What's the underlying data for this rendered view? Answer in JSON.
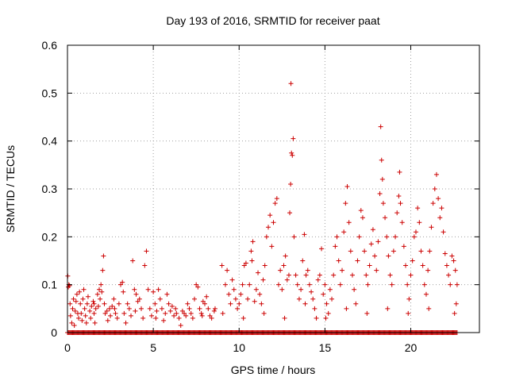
{
  "chart_data": {
    "type": "scatter",
    "title": "Day 193 of 2016, SRMTID for receiver paat",
    "xlabel": "GPS time / hours",
    "ylabel": "SRMTID / TECUs",
    "xlim": [
      0,
      24
    ],
    "ylim": [
      0,
      0.6
    ],
    "xticks": [
      0,
      5,
      10,
      15,
      20
    ],
    "xtick_labels": [
      "0",
      "5",
      "10",
      "15",
      "20"
    ],
    "yticks": [
      0,
      0.1,
      0.2,
      0.3,
      0.4,
      0.5,
      0.6
    ],
    "ytick_labels": [
      "0",
      "0.1",
      "0.2",
      "0.3",
      "0.4",
      "0.5",
      "0.6"
    ],
    "grid": true,
    "marker": "+",
    "color": "#cc0000",
    "baseline_series": {
      "x_start": 0.0,
      "x_end": 22.7,
      "step": 0.05,
      "y": 0
    },
    "points": [
      [
        0.02,
        0.118
      ],
      [
        0.05,
        0.095
      ],
      [
        0.08,
        0.1
      ],
      [
        0.12,
        0.098
      ],
      [
        0.15,
        0.06
      ],
      [
        0.18,
        0.035
      ],
      [
        0.25,
        0.02
      ],
      [
        0.3,
        0.05
      ],
      [
        0.35,
        0.07
      ],
      [
        0.4,
        0.015
      ],
      [
        0.45,
        0.045
      ],
      [
        0.5,
        0.065
      ],
      [
        0.55,
        0.08
      ],
      [
        0.6,
        0.04
      ],
      [
        0.65,
        0.03
      ],
      [
        0.7,
        0.085
      ],
      [
        0.75,
        0.06
      ],
      [
        0.8,
        0.04
      ],
      [
        0.85,
        0.025
      ],
      [
        0.9,
        0.07
      ],
      [
        0.95,
        0.09
      ],
      [
        1.0,
        0.05
      ],
      [
        1.05,
        0.035
      ],
      [
        1.1,
        0.02
      ],
      [
        1.15,
        0.06
      ],
      [
        1.2,
        0.075
      ],
      [
        1.3,
        0.045
      ],
      [
        1.35,
        0.03
      ],
      [
        1.4,
        0.055
      ],
      [
        1.5,
        0.065
      ],
      [
        1.55,
        0.04
      ],
      [
        1.6,
        0.02
      ],
      [
        1.65,
        0.05
      ],
      [
        1.75,
        0.08
      ],
      [
        1.8,
        0.055
      ],
      [
        1.85,
        0.09
      ],
      [
        1.9,
        0.07
      ],
      [
        1.95,
        0.1
      ],
      [
        2.0,
        0.085
      ],
      [
        2.05,
        0.13
      ],
      [
        2.1,
        0.16
      ],
      [
        2.15,
        0.06
      ],
      [
        2.2,
        0.04
      ],
      [
        2.3,
        0.045
      ],
      [
        2.35,
        0.025
      ],
      [
        2.45,
        0.05
      ],
      [
        2.5,
        0.035
      ],
      [
        2.6,
        0.055
      ],
      [
        2.7,
        0.07
      ],
      [
        2.8,
        0.04
      ],
      [
        2.9,
        0.03
      ],
      [
        3.0,
        0.06
      ],
      [
        3.1,
        0.1
      ],
      [
        3.2,
        0.105
      ],
      [
        3.25,
        0.085
      ],
      [
        3.3,
        0.04
      ],
      [
        3.4,
        0.02
      ],
      [
        3.5,
        0.06
      ],
      [
        3.6,
        0.05
      ],
      [
        3.7,
        0.035
      ],
      [
        3.8,
        0.15
      ],
      [
        3.9,
        0.09
      ],
      [
        4.0,
        0.08
      ],
      [
        4.1,
        0.065
      ],
      [
        4.2,
        0.07
      ],
      [
        4.3,
        0.05
      ],
      [
        4.4,
        0.03
      ],
      [
        4.5,
        0.14
      ],
      [
        4.6,
        0.17
      ],
      [
        4.7,
        0.09
      ],
      [
        4.8,
        0.05
      ],
      [
        4.9,
        0.035
      ],
      [
        5.0,
        0.085
      ],
      [
        5.1,
        0.06
      ],
      [
        5.2,
        0.045
      ],
      [
        5.3,
        0.09
      ],
      [
        5.4,
        0.07
      ],
      [
        5.5,
        0.05
      ],
      [
        5.6,
        0.025
      ],
      [
        5.7,
        0.04
      ],
      [
        5.8,
        0.08
      ],
      [
        5.9,
        0.06
      ],
      [
        6.0,
        0.045
      ],
      [
        6.1,
        0.055
      ],
      [
        6.2,
        0.035
      ],
      [
        6.3,
        0.05
      ],
      [
        6.5,
        0.03
      ],
      [
        6.6,
        0.015
      ],
      [
        6.7,
        0.045
      ],
      [
        6.8,
        0.04
      ],
      [
        6.9,
        0.035
      ],
      [
        7.0,
        0.06
      ],
      [
        7.1,
        0.05
      ],
      [
        7.2,
        0.04
      ],
      [
        7.3,
        0.03
      ],
      [
        7.4,
        0.07
      ],
      [
        7.5,
        0.1
      ],
      [
        7.6,
        0.095
      ],
      [
        7.7,
        0.05
      ],
      [
        7.8,
        0.04
      ],
      [
        7.9,
        0.065
      ],
      [
        8.0,
        0.06
      ],
      [
        8.1,
        0.075
      ],
      [
        8.2,
        0.05
      ],
      [
        8.3,
        0.035
      ],
      [
        8.4,
        0.03
      ],
      [
        8.6,
        0.05
      ],
      [
        9.0,
        0.14
      ],
      [
        9.2,
        0.1
      ],
      [
        9.3,
        0.13
      ],
      [
        9.4,
        0.08
      ],
      [
        9.5,
        0.06
      ],
      [
        9.6,
        0.11
      ],
      [
        9.7,
        0.09
      ],
      [
        9.8,
        0.07
      ],
      [
        9.9,
        0.05
      ],
      [
        10.0,
        0.06
      ],
      [
        10.1,
        0.08
      ],
      [
        10.2,
        0.1
      ],
      [
        10.3,
        0.14
      ],
      [
        10.4,
        0.145
      ],
      [
        10.5,
        0.07
      ],
      [
        10.6,
        0.1
      ],
      [
        10.7,
        0.17
      ],
      [
        10.75,
        0.15
      ],
      [
        10.8,
        0.19
      ],
      [
        10.9,
        0.065
      ],
      [
        11.0,
        0.09
      ],
      [
        11.1,
        0.125
      ],
      [
        11.2,
        0.08
      ],
      [
        11.3,
        0.06
      ],
      [
        11.4,
        0.11
      ],
      [
        11.5,
        0.14
      ],
      [
        11.6,
        0.2
      ],
      [
        11.7,
        0.22
      ],
      [
        11.8,
        0.245
      ],
      [
        11.9,
        0.18
      ],
      [
        12.0,
        0.23
      ],
      [
        12.1,
        0.27
      ],
      [
        12.2,
        0.28
      ],
      [
        12.3,
        0.1
      ],
      [
        12.4,
        0.13
      ],
      [
        12.5,
        0.09
      ],
      [
        12.6,
        0.14
      ],
      [
        12.7,
        0.16
      ],
      [
        12.8,
        0.11
      ],
      [
        12.9,
        0.12
      ],
      [
        12.95,
        0.25
      ],
      [
        13.0,
        0.31
      ],
      [
        13.02,
        0.52
      ],
      [
        13.05,
        0.375
      ],
      [
        13.1,
        0.37
      ],
      [
        13.15,
        0.405
      ],
      [
        13.2,
        0.2
      ],
      [
        13.3,
        0.12
      ],
      [
        13.4,
        0.1
      ],
      [
        13.5,
        0.07
      ],
      [
        13.6,
        0.09
      ],
      [
        13.7,
        0.15
      ],
      [
        13.8,
        0.205
      ],
      [
        13.9,
        0.12
      ],
      [
        14.0,
        0.13
      ],
      [
        14.1,
        0.1
      ],
      [
        14.2,
        0.085
      ],
      [
        14.3,
        0.07
      ],
      [
        14.4,
        0.05
      ],
      [
        14.5,
        0.03
      ],
      [
        14.6,
        0.11
      ],
      [
        14.7,
        0.12
      ],
      [
        14.8,
        0.175
      ],
      [
        14.9,
        0.08
      ],
      [
        15.0,
        0.1
      ],
      [
        15.1,
        0.06
      ],
      [
        15.2,
        0.04
      ],
      [
        15.3,
        0.09
      ],
      [
        15.4,
        0.07
      ],
      [
        15.5,
        0.12
      ],
      [
        15.6,
        0.18
      ],
      [
        15.7,
        0.2
      ],
      [
        15.8,
        0.15
      ],
      [
        15.9,
        0.1
      ],
      [
        16.0,
        0.13
      ],
      [
        16.1,
        0.21
      ],
      [
        16.2,
        0.27
      ],
      [
        16.3,
        0.305
      ],
      [
        16.4,
        0.23
      ],
      [
        16.5,
        0.17
      ],
      [
        16.6,
        0.12
      ],
      [
        16.7,
        0.09
      ],
      [
        16.8,
        0.06
      ],
      [
        16.9,
        0.15
      ],
      [
        17.0,
        0.2
      ],
      [
        17.1,
        0.255
      ],
      [
        17.2,
        0.24
      ],
      [
        17.3,
        0.17
      ],
      [
        17.4,
        0.12
      ],
      [
        17.5,
        0.1
      ],
      [
        17.6,
        0.14
      ],
      [
        17.7,
        0.185
      ],
      [
        17.8,
        0.215
      ],
      [
        17.9,
        0.16
      ],
      [
        18.0,
        0.13
      ],
      [
        18.1,
        0.19
      ],
      [
        18.2,
        0.29
      ],
      [
        18.25,
        0.43
      ],
      [
        18.3,
        0.36
      ],
      [
        18.35,
        0.32
      ],
      [
        18.4,
        0.27
      ],
      [
        18.5,
        0.24
      ],
      [
        18.6,
        0.2
      ],
      [
        18.7,
        0.16
      ],
      [
        18.8,
        0.12
      ],
      [
        18.9,
        0.1
      ],
      [
        19.0,
        0.17
      ],
      [
        19.1,
        0.2
      ],
      [
        19.2,
        0.25
      ],
      [
        19.3,
        0.285
      ],
      [
        19.35,
        0.335
      ],
      [
        19.4,
        0.27
      ],
      [
        19.5,
        0.23
      ],
      [
        19.6,
        0.18
      ],
      [
        19.7,
        0.14
      ],
      [
        19.8,
        0.1
      ],
      [
        19.9,
        0.07
      ],
      [
        20.0,
        0.12
      ],
      [
        20.1,
        0.15
      ],
      [
        20.2,
        0.2
      ],
      [
        20.3,
        0.21
      ],
      [
        20.4,
        0.26
      ],
      [
        20.5,
        0.23
      ],
      [
        20.6,
        0.17
      ],
      [
        20.7,
        0.14
      ],
      [
        20.8,
        0.1
      ],
      [
        20.9,
        0.08
      ],
      [
        21.0,
        0.13
      ],
      [
        21.1,
        0.17
      ],
      [
        21.2,
        0.22
      ],
      [
        21.3,
        0.27
      ],
      [
        21.4,
        0.3
      ],
      [
        21.5,
        0.33
      ],
      [
        21.6,
        0.28
      ],
      [
        21.7,
        0.24
      ],
      [
        21.8,
        0.26
      ],
      [
        21.9,
        0.21
      ],
      [
        22.0,
        0.165
      ],
      [
        22.1,
        0.14
      ],
      [
        22.2,
        0.12
      ],
      [
        22.3,
        0.1
      ],
      [
        22.4,
        0.16
      ],
      [
        22.5,
        0.15
      ],
      [
        22.6,
        0.13
      ],
      [
        22.7,
        0.1
      ],
      [
        22.65,
        0.06
      ],
      [
        22.55,
        0.04
      ],
      [
        21.05,
        0.05
      ],
      [
        19.85,
        0.04
      ],
      [
        18.65,
        0.05
      ],
      [
        17.45,
        0.04
      ],
      [
        16.25,
        0.05
      ],
      [
        15.05,
        0.03
      ],
      [
        13.85,
        0.06
      ],
      [
        12.65,
        0.03
      ],
      [
        11.45,
        0.04
      ],
      [
        10.25,
        0.03
      ],
      [
        9.05,
        0.04
      ],
      [
        8.55,
        0.045
      ],
      [
        7.85,
        0.035
      ],
      [
        6.35,
        0.04
      ],
      [
        5.15,
        0.03
      ],
      [
        3.95,
        0.045
      ],
      [
        2.75,
        0.05
      ],
      [
        1.55,
        0.06
      ]
    ]
  }
}
